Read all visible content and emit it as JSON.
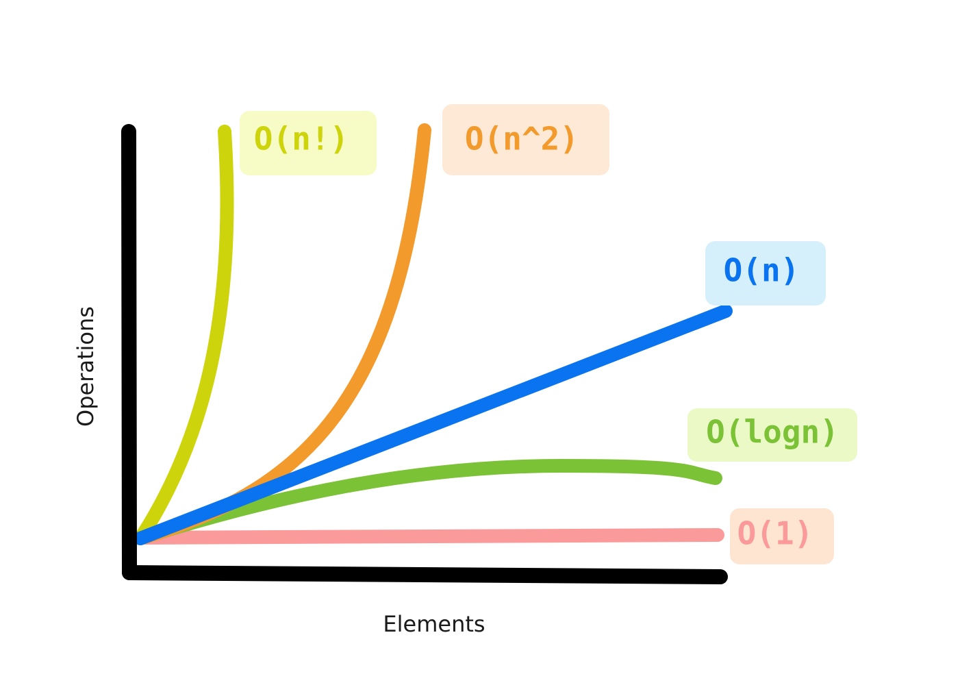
{
  "chart_data": {
    "type": "line",
    "xlabel": "Elements",
    "ylabel": "Operations",
    "grid": false,
    "legend": "none",
    "series": [
      {
        "key": "constant",
        "name": "O(1)",
        "color": "#fb9a9a",
        "label_bg": "#fde5d2"
      },
      {
        "key": "logarithmic",
        "name": "O(logn)",
        "color": "#7cc236",
        "label_bg": "#eaf9c6"
      },
      {
        "key": "linear",
        "name": "O(n)",
        "color": "#0a73f0",
        "label_bg": "#d6f0fb"
      },
      {
        "key": "quadratic",
        "name": "O(n^2)",
        "color": "#f39a2c",
        "label_bg": "#fde9d6"
      },
      {
        "key": "factorial",
        "name": "O(n!)",
        "color": "#cdd40c",
        "label_bg": "#f7fbc6"
      }
    ]
  }
}
